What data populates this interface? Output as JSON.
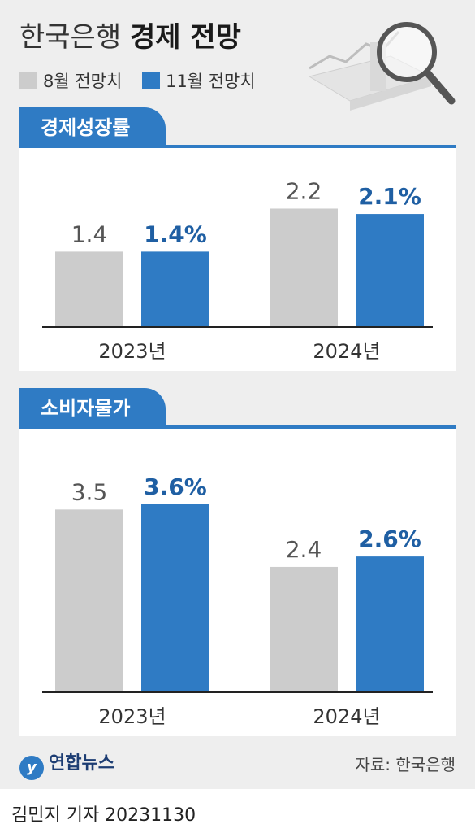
{
  "header": {
    "title_light": "한국은행",
    "title_bold": "경제 전망"
  },
  "legend": [
    {
      "label": "8월 전망치",
      "color": "#cccccc"
    },
    {
      "label": "11월 전망치",
      "color": "#2f7bc4"
    }
  ],
  "colors": {
    "accent": "#2f7bc4",
    "grey_bar": "#cccccc",
    "grey_text": "#555555",
    "blue_text": "#1f5fa3"
  },
  "chart_data": [
    {
      "type": "bar",
      "title": "경제성장률",
      "categories": [
        "2023년",
        "2024년"
      ],
      "series": [
        {
          "name": "8월 전망치",
          "values": [
            1.4,
            2.2
          ],
          "labels": [
            "1.4",
            "2.2"
          ]
        },
        {
          "name": "11월 전망치",
          "values": [
            1.4,
            2.1
          ],
          "labels": [
            "1.4%",
            "2.1%"
          ]
        }
      ],
      "ylim": [
        0,
        2.6
      ]
    },
    {
      "type": "bar",
      "title": "소비자물가",
      "categories": [
        "2023년",
        "2024년"
      ],
      "series": [
        {
          "name": "8월 전망치",
          "values": [
            3.5,
            2.4
          ],
          "labels": [
            "3.5",
            "2.4"
          ]
        },
        {
          "name": "11월 전망치",
          "values": [
            3.6,
            2.6
          ],
          "labels": [
            "3.6%",
            "2.6%"
          ]
        }
      ],
      "ylim": [
        0,
        4.3
      ]
    }
  ],
  "footer": {
    "logo_text": "연합뉴스",
    "source": "자료: 한국은행",
    "credit": "김민지 기자  20231130"
  }
}
